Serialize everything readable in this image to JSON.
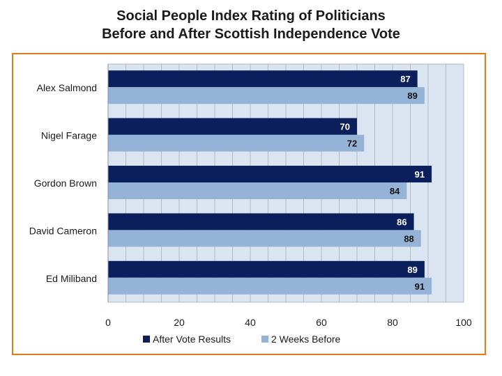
{
  "chart_data": {
    "type": "bar",
    "orientation": "horizontal",
    "title_line1": "Social People Index Rating of Politicians",
    "title_line2": "Before and After Scottish Independence Vote",
    "categories": [
      "Alex Salmond",
      "Nigel Farage",
      "Gordon Brown",
      "David Cameron",
      "Ed Miliband"
    ],
    "series": [
      {
        "name": "After Vote Results",
        "color": "#0b1f5c",
        "values": [
          87,
          70,
          91,
          86,
          89
        ]
      },
      {
        "name": "2 Weeks Before",
        "color": "#95b3d7",
        "values": [
          89,
          72,
          84,
          88,
          91
        ]
      }
    ],
    "xlim": [
      0,
      100
    ],
    "x_ticks": [
      "0",
      "20",
      "40",
      "60",
      "80",
      "100"
    ],
    "grid": true,
    "legend_position": "bottom",
    "plot_background": "#dbe5f1",
    "frame_color": "#e07b18"
  }
}
